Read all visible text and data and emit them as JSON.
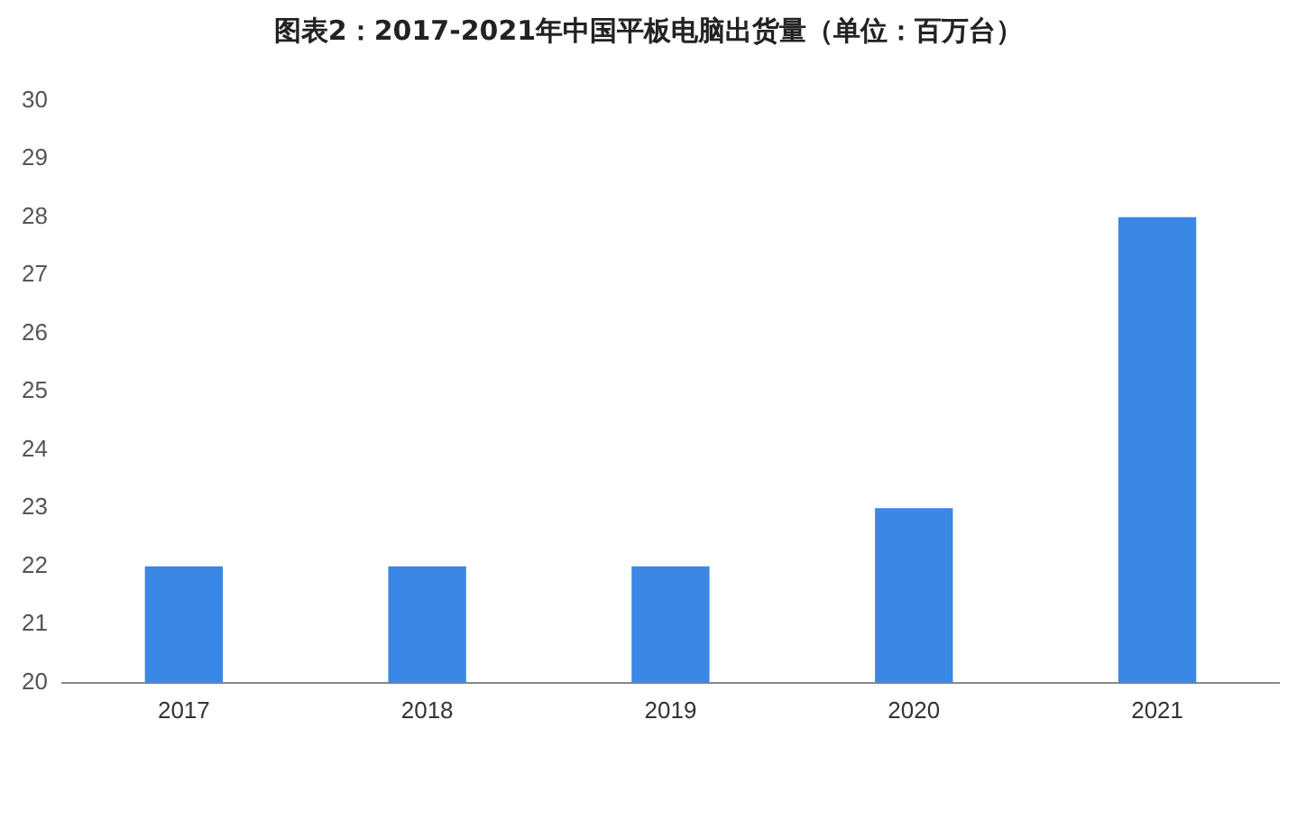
{
  "chart_data": {
    "type": "bar",
    "title": "图表2：2017-2021年中国平板电脑出货量（单位：百万台）",
    "categories": [
      "2017",
      "2018",
      "2019",
      "2020",
      "2021"
    ],
    "values": [
      22,
      22,
      22,
      23,
      28
    ],
    "color": "#3a87e6",
    "ylim": [
      20,
      30
    ],
    "yticks": [
      20,
      21,
      22,
      23,
      24,
      25,
      26,
      27,
      28,
      29,
      30
    ],
    "grid": false,
    "legend": false
  }
}
